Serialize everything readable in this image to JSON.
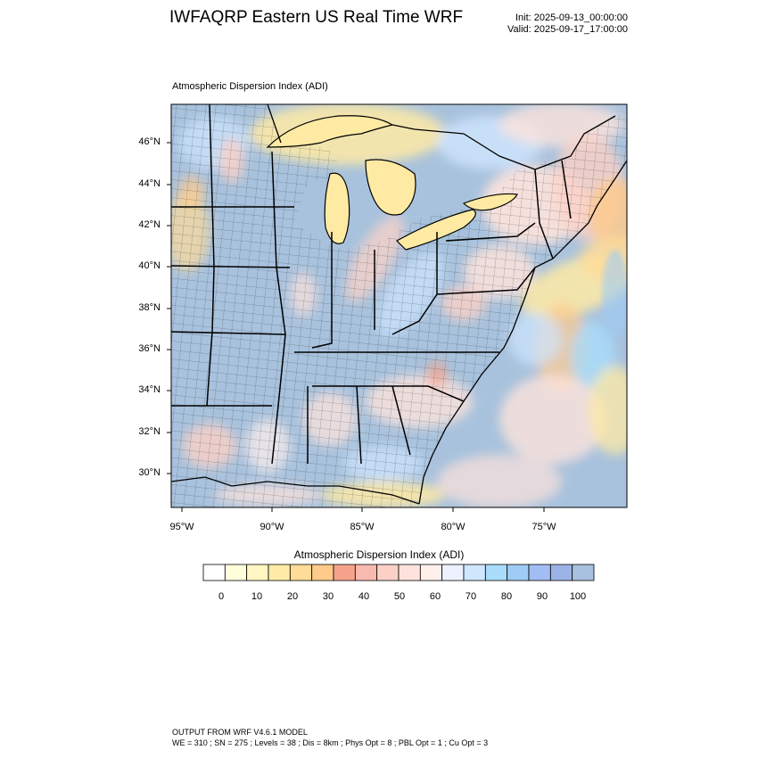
{
  "header": {
    "title": "IWFAQRP Eastern US Real Time WRF",
    "init": "Init: 2025-09-13_00:00:00",
    "valid": "Valid: 2025-09-17_17:00:00"
  },
  "map": {
    "field_label": "Atmospheric Dispersion Index   (ADI)",
    "lat_labels": [
      "46°N",
      "44°N",
      "42°N",
      "40°N",
      "38°N",
      "36°N",
      "34°N",
      "32°N",
      "30°N"
    ],
    "lon_labels": [
      "95°W",
      "90°W",
      "85°W",
      "80°W",
      "75°W"
    ],
    "colors": {
      "ocean_base": "#a8c2dd",
      "land_base": "#a9c1dc",
      "lake_yellow": "#ffeaa4",
      "outline": "#000000"
    }
  },
  "colorbar": {
    "title": "Atmospheric Dispersion Index  (ADI)",
    "colors": [
      "#ffffff",
      "#ffffdc",
      "#fff6c2",
      "#ffeba6",
      "#ffdc98",
      "#ffcb8a",
      "#f6a38c",
      "#f8baaf",
      "#fbd1c7",
      "#fde3dc",
      "#fff0ec",
      "#eef2ff",
      "#cfe6ff",
      "#a9dcfa",
      "#9fccf5",
      "#a2bdf3",
      "#9bb4e5",
      "#a7c1de"
    ],
    "tick_labels": [
      "0",
      "10",
      "20",
      "30",
      "40",
      "50",
      "60",
      "70",
      "80",
      "90",
      "100"
    ]
  },
  "footer": {
    "line1": "OUTPUT FROM WRF V4.6.1 MODEL",
    "line2": "WE = 310 ; SN = 275 ; Levels = 38 ; Dis = 8km ; Phys Opt = 8 ; PBL Opt = 1 ; Cu Opt = 3"
  }
}
